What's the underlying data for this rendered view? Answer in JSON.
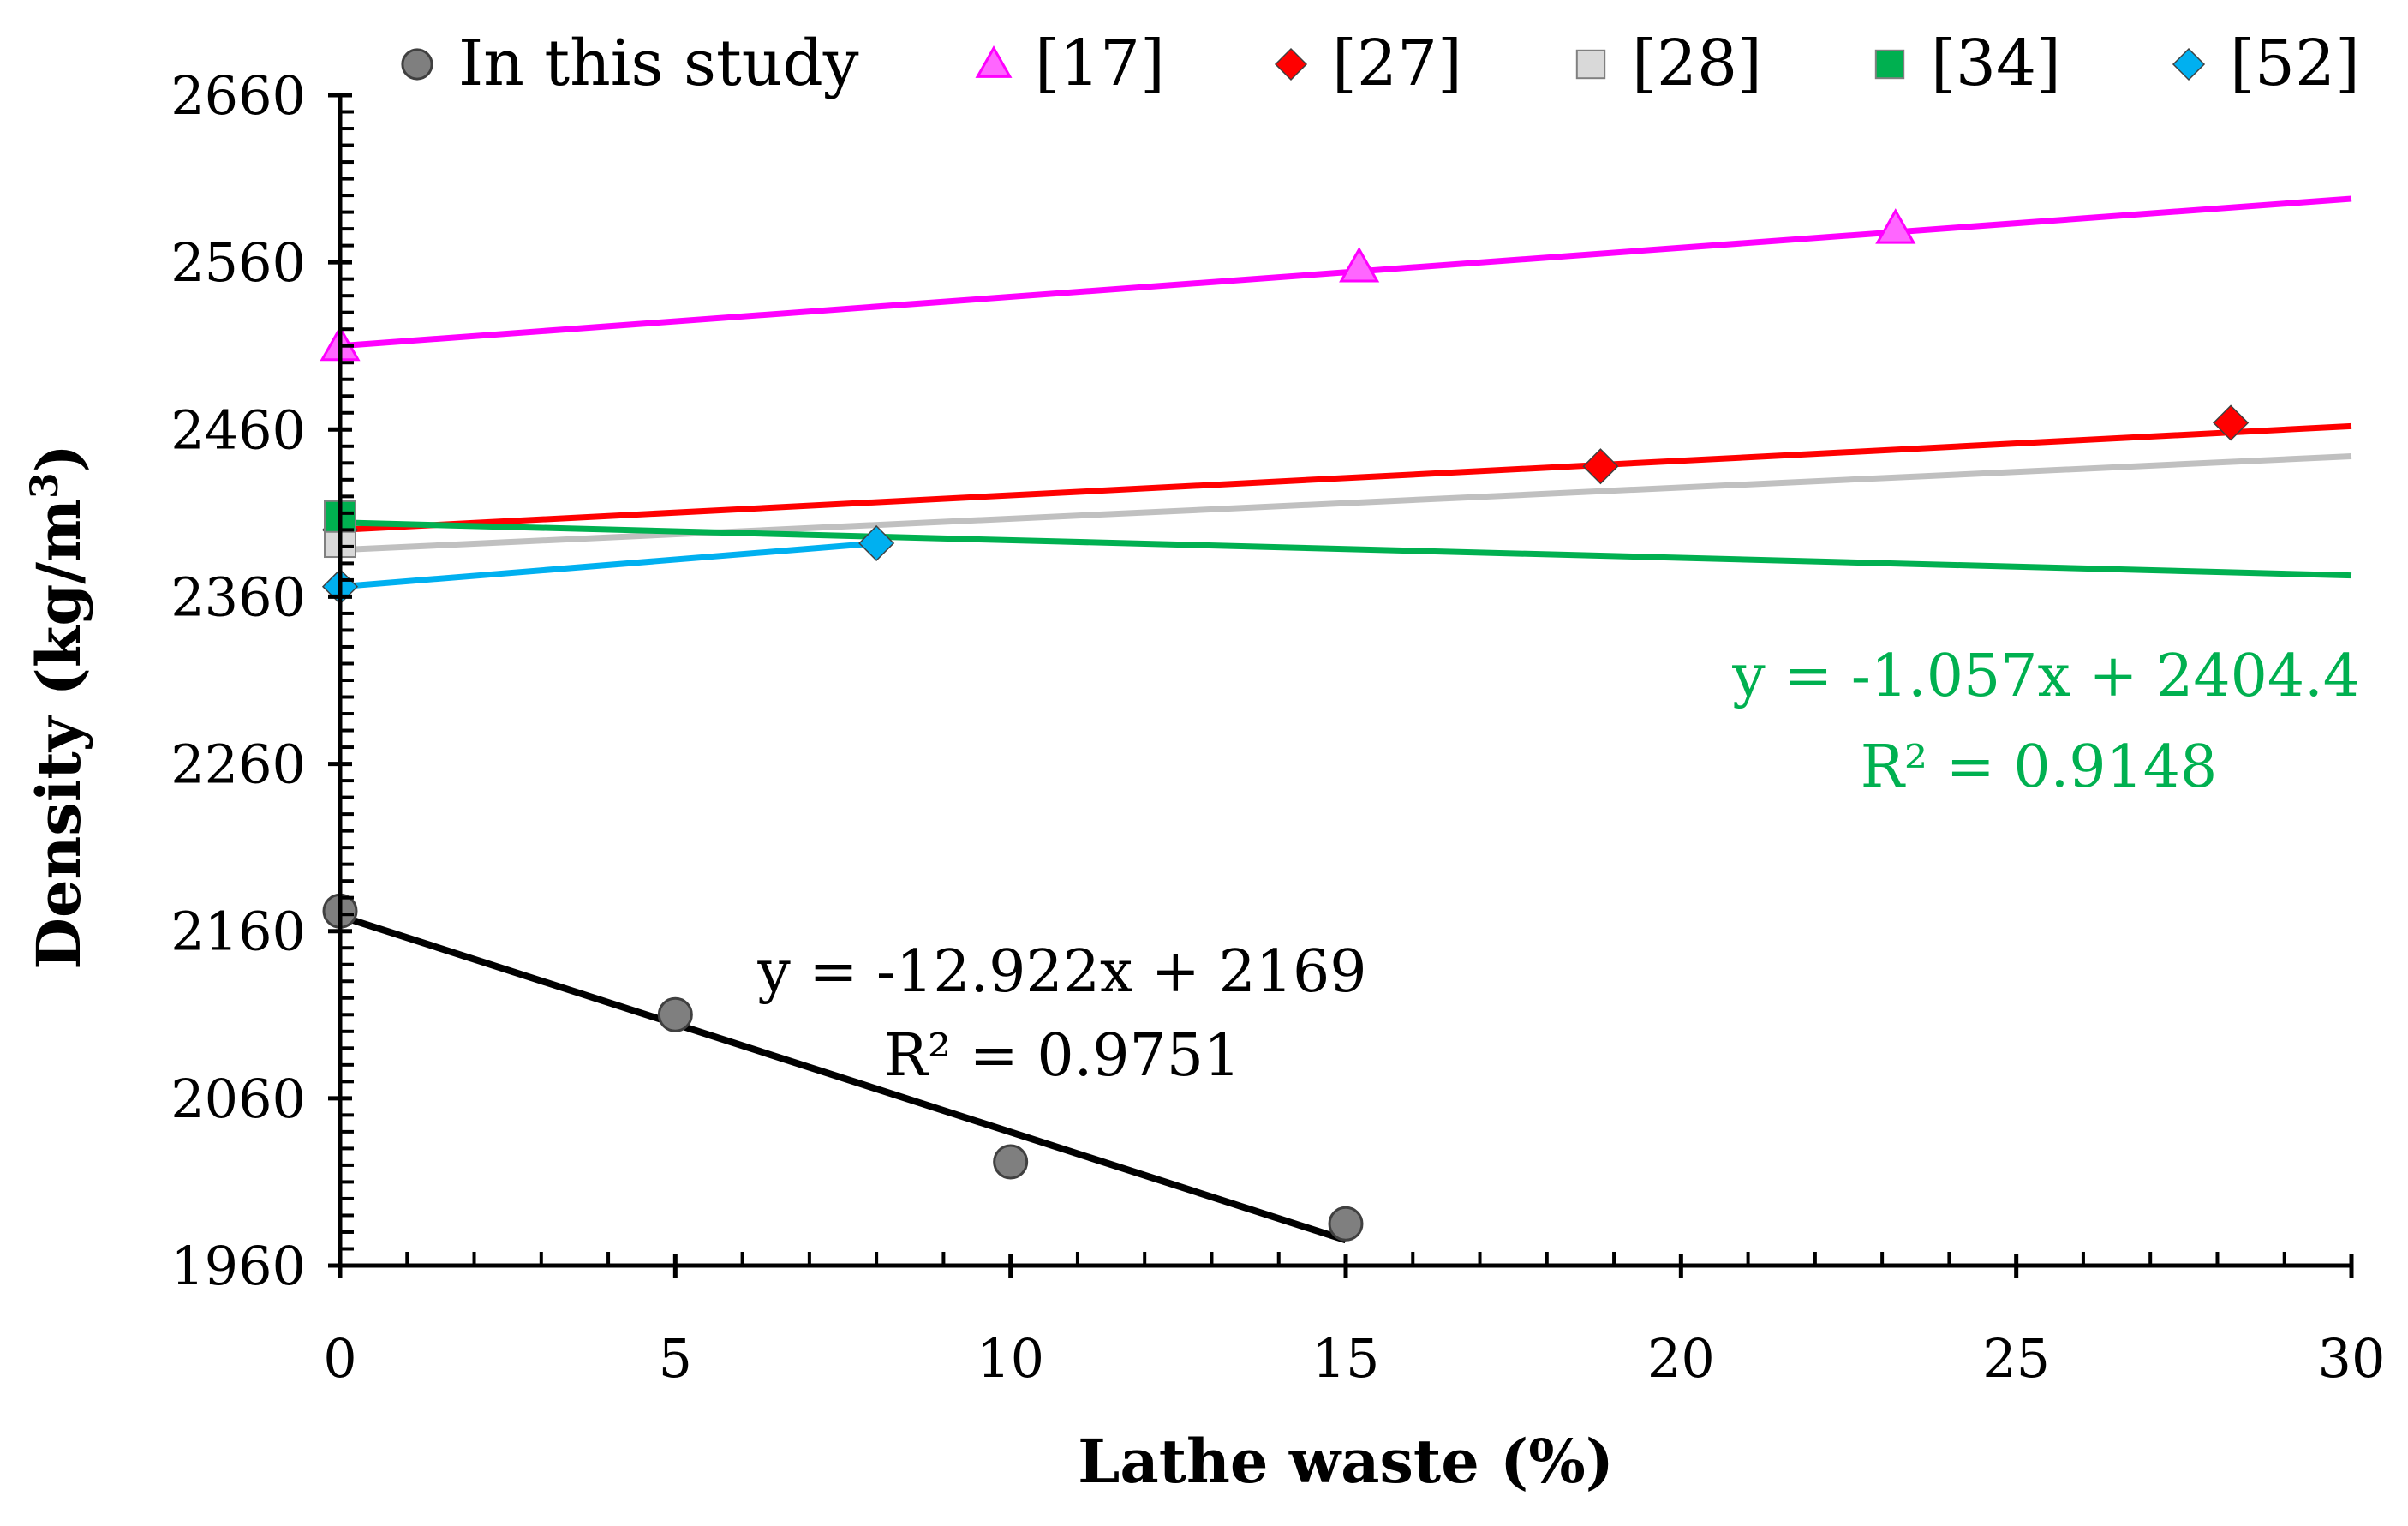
{
  "chart_data": {
    "type": "scatter",
    "xlabel": "Lathe waste (%)",
    "ylabel": "Density (kg/m",
    "ylabel_sup": "3",
    "ylabel_close": ")",
    "xlim": [
      0,
      30
    ],
    "ylim": [
      1960,
      2660
    ],
    "x_ticks": [
      0,
      5,
      10,
      15,
      20,
      25,
      30
    ],
    "y_ticks": [
      1960,
      2060,
      2160,
      2260,
      2360,
      2460,
      2560,
      2660
    ],
    "series": [
      {
        "name": "In this study",
        "marker": "circle",
        "color": "#7f7f7f",
        "line_color": "#000000",
        "points": [
          [
            0,
            2172
          ],
          [
            5,
            2110
          ],
          [
            10,
            2022
          ],
          [
            15,
            1985
          ]
        ],
        "trend": [
          [
            0,
            2169
          ],
          [
            15,
            1975.2
          ]
        ]
      },
      {
        "name": "[17]",
        "marker": "triangle",
        "color": "#ff66ff",
        "line_color": "#ff00ff",
        "points": [
          [
            0,
            2510
          ],
          [
            15.2,
            2557
          ],
          [
            23.2,
            2580
          ]
        ],
        "trend": [
          [
            0,
            2510
          ],
          [
            30,
            2598
          ]
        ]
      },
      {
        "name": "[27]",
        "marker": "diamond",
        "color": "#ff0000",
        "line_color": "#ff0000",
        "points": [
          [
            0,
            2400
          ],
          [
            18.8,
            2438
          ],
          [
            28.2,
            2464
          ]
        ],
        "trend": [
          [
            0,
            2400
          ],
          [
            30,
            2462
          ]
        ]
      },
      {
        "name": "[28]",
        "marker": "square",
        "color": "#d9d9d9",
        "line_color": "#c0c0c0",
        "points": [
          [
            0,
            2393
          ]
        ],
        "trend": [
          [
            0,
            2388
          ],
          [
            30,
            2444
          ]
        ]
      },
      {
        "name": "[34]",
        "marker": "square",
        "color": "#00b050",
        "line_color": "#00b050",
        "points": [
          [
            0,
            2408
          ]
        ],
        "trend": [
          [
            0,
            2404.4
          ],
          [
            30,
            2372.7
          ]
        ]
      },
      {
        "name": "[52]",
        "marker": "diamond",
        "color": "#00b0f0",
        "line_color": "#00b0f0",
        "points": [
          [
            0,
            2366
          ],
          [
            8,
            2392
          ]
        ],
        "trend": [
          [
            0,
            2366
          ],
          [
            8,
            2392
          ]
        ]
      }
    ],
    "annotations": [
      {
        "line1": "y = -1.057x + 2404.4",
        "line2": "R² = 0.9148",
        "color": "#00b050"
      },
      {
        "line1": "y = -12.922x + 2169",
        "line2": "R² = 0.9751",
        "color": "#000000"
      }
    ]
  }
}
